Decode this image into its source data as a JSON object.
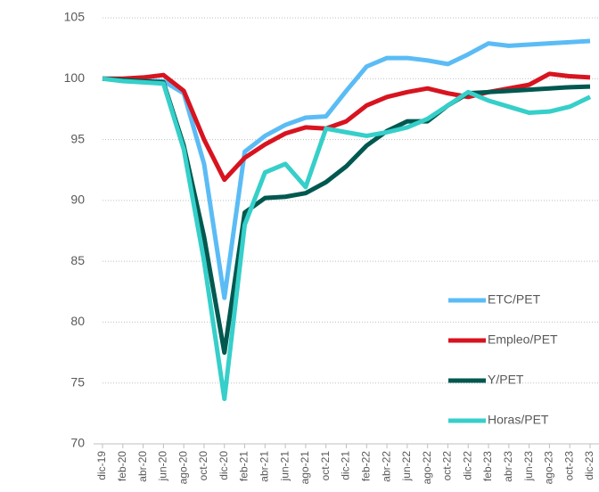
{
  "chart_data": {
    "type": "line",
    "categories": [
      "dic-19",
      "feb-20",
      "abr-20",
      "jun-20",
      "ago-20",
      "oct-20",
      "dic-20",
      "feb-21",
      "abr-21",
      "jun-21",
      "ago-21",
      "oct-21",
      "dic-21",
      "feb-22",
      "abr-22",
      "jun-22",
      "ago-22",
      "oct-22",
      "dic-22",
      "feb-23",
      "abr-23",
      "jun-23",
      "ago-23",
      "oct-23",
      "dic-23"
    ],
    "series": [
      {
        "name": "ETC/PET",
        "color": "#5bbcf5",
        "values": [
          100,
          99.9,
          99.8,
          99.8,
          98.8,
          93,
          82,
          94,
          95.3,
          96.2,
          96.8,
          96.9,
          99,
          101,
          101.7,
          101.7,
          101.5,
          101.2,
          102,
          102.9,
          102.7,
          102.8,
          102.9,
          103,
          103.1
        ]
      },
      {
        "name": "Empleo/PET",
        "color": "#d7141f",
        "values": [
          100,
          100,
          100.1,
          100.3,
          99,
          95,
          91.7,
          93.5,
          94.6,
          95.5,
          96,
          95.9,
          96.5,
          97.8,
          98.5,
          98.9,
          99.2,
          98.8,
          98.5,
          98.9,
          99.2,
          99.5,
          100.4,
          100.2,
          100.1
        ]
      },
      {
        "name": "Y/PET",
        "color": "#00584f",
        "values": [
          100,
          99.9,
          99.8,
          99.7,
          94.5,
          87,
          77.5,
          89,
          90.2,
          90.3,
          90.6,
          91.5,
          92.8,
          94.5,
          95.7,
          96.5,
          96.5,
          97.8,
          98.8,
          98.9,
          99,
          99.1,
          99.2,
          99.3,
          99.35
        ]
      },
      {
        "name": "Horas/PET",
        "color": "#36cfc9",
        "values": [
          100,
          99.8,
          99.7,
          99.6,
          94.2,
          85,
          73.7,
          88,
          92.3,
          93,
          91.1,
          95.9,
          95.6,
          95.3,
          95.6,
          96,
          96.7,
          97.8,
          98.9,
          98.2,
          97.7,
          97.2,
          97.3,
          97.7,
          98.5
        ]
      }
    ],
    "ylim": [
      70,
      105
    ],
    "yticks": [
      70,
      75,
      80,
      85,
      90,
      95,
      100,
      105
    ],
    "grid": true,
    "legend": "right"
  }
}
